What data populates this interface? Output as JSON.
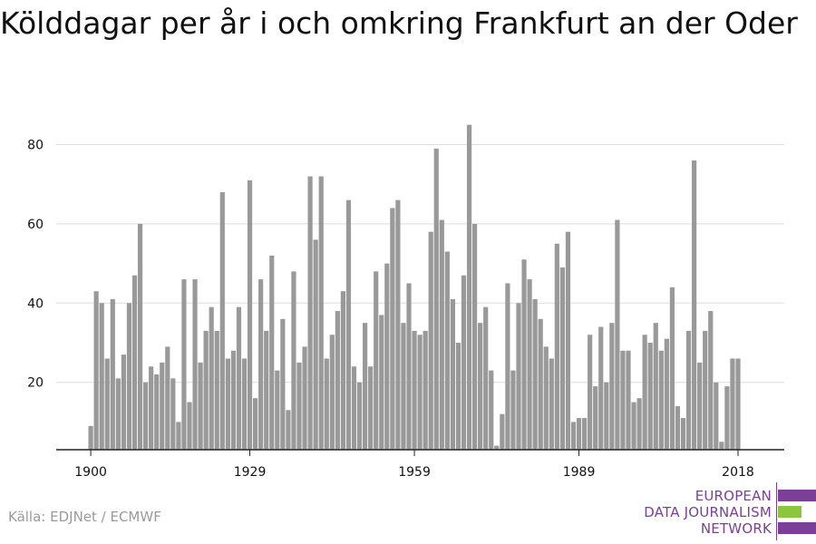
{
  "title": "Kölddagar per år i och omkring Frankfurt an der Oder",
  "source": "Källa: EDJNet / ECMWF",
  "logo": {
    "line1": "EUROPEAN",
    "line2": "DATA JOURNALISM",
    "line3": "NETWORK",
    "colors": {
      "purple": "#7b3f98",
      "green": "#8cc63f"
    }
  },
  "chart_data": {
    "type": "bar",
    "title": "Kölddagar per år i och omkring Frankfurt an der Oder",
    "xlabel": "",
    "ylabel": "",
    "x_start": 1900,
    "categories": [
      1900,
      1901,
      1902,
      1903,
      1904,
      1905,
      1906,
      1907,
      1908,
      1909,
      1910,
      1911,
      1912,
      1913,
      1914,
      1915,
      1916,
      1917,
      1918,
      1919,
      1920,
      1921,
      1922,
      1923,
      1924,
      1925,
      1926,
      1927,
      1928,
      1929,
      1930,
      1931,
      1932,
      1933,
      1934,
      1935,
      1936,
      1937,
      1938,
      1939,
      1940,
      1941,
      1942,
      1943,
      1944,
      1945,
      1946,
      1947,
      1948,
      1949,
      1950,
      1951,
      1952,
      1953,
      1954,
      1955,
      1956,
      1957,
      1958,
      1959,
      1960,
      1961,
      1962,
      1963,
      1964,
      1965,
      1966,
      1967,
      1968,
      1969,
      1970,
      1971,
      1972,
      1973,
      1974,
      1975,
      1976,
      1977,
      1978,
      1979,
      1980,
      1981,
      1982,
      1983,
      1984,
      1985,
      1986,
      1987,
      1988,
      1989,
      1990,
      1991,
      1992,
      1993,
      1994,
      1995,
      1996,
      1997,
      1998,
      1999,
      2000,
      2001,
      2002,
      2003,
      2004,
      2005,
      2006,
      2007,
      2008,
      2009,
      2010,
      2011,
      2012,
      2013,
      2014,
      2015,
      2016,
      2017,
      2018
    ],
    "values": [
      9,
      43,
      40,
      26,
      41,
      21,
      27,
      40,
      47,
      60,
      20,
      24,
      22,
      25,
      29,
      21,
      10,
      46,
      15,
      46,
      25,
      33,
      39,
      33,
      68,
      26,
      28,
      39,
      26,
      71,
      16,
      46,
      33,
      52,
      23,
      36,
      13,
      48,
      25,
      29,
      72,
      56,
      72,
      26,
      32,
      38,
      43,
      66,
      24,
      20,
      35,
      24,
      48,
      37,
      50,
      64,
      66,
      35,
      45,
      33,
      32,
      33,
      58,
      79,
      61,
      53,
      41,
      30,
      47,
      85,
      60,
      35,
      39,
      23,
      4,
      12,
      45,
      23,
      40,
      51,
      46,
      41,
      36,
      29,
      26,
      55,
      49,
      58,
      10,
      11,
      11,
      32,
      19,
      34,
      20,
      35,
      61,
      28,
      28,
      15,
      16,
      32,
      30,
      35,
      28,
      31,
      44,
      14,
      11,
      33,
      76,
      25,
      33,
      38,
      20,
      5,
      19,
      26,
      26
    ],
    "xticks": [
      1900,
      1929,
      1959,
      1989,
      2018
    ],
    "yticks": [
      20,
      40,
      60,
      80
    ],
    "ylim": [
      3,
      88
    ],
    "grid": true,
    "bar_color": "#999999",
    "grid_color": "#dddddd",
    "axis_color": "#222222"
  }
}
